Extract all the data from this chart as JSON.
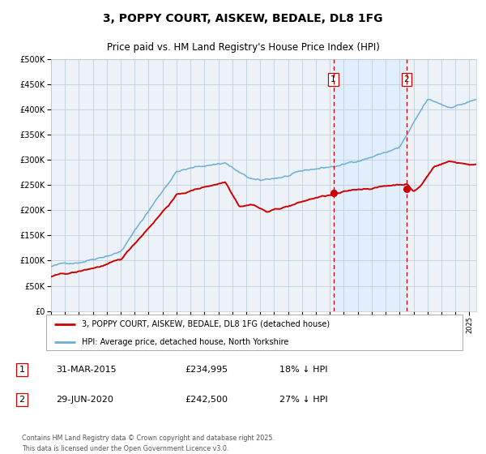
{
  "title": "3, POPPY COURT, AISKEW, BEDALE, DL8 1FG",
  "subtitle": "Price paid vs. HM Land Registry's House Price Index (HPI)",
  "legend_line1": "3, POPPY COURT, AISKEW, BEDALE, DL8 1FG (detached house)",
  "legend_line2": "HPI: Average price, detached house, North Yorkshire",
  "footer": "Contains HM Land Registry data © Crown copyright and database right 2025.\nThis data is licensed under the Open Government Licence v3.0.",
  "sale1_date": "31-MAR-2015",
  "sale1_price": "£234,995",
  "sale1_hpi": "18% ↓ HPI",
  "sale1_year": 2015.25,
  "sale1_value": 234995,
  "sale2_date": "29-JUN-2020",
  "sale2_price": "£242,500",
  "sale2_hpi": "27% ↓ HPI",
  "sale2_year": 2020.5,
  "sale2_value": 242500,
  "hpi_color": "#6baed6",
  "price_color": "#cc0000",
  "sale_dot_color": "#cc0000",
  "shade_color": "#ddeeff",
  "grid_color": "#b8c8dc",
  "bg_color": "#edf2f8",
  "vline_color": "#cc0000",
  "box_color": "#cc0000",
  "ylim_max": 500000,
  "xlim_start": 1995,
  "xlim_end": 2025,
  "title_fontsize": 10,
  "subtitle_fontsize": 8.5
}
